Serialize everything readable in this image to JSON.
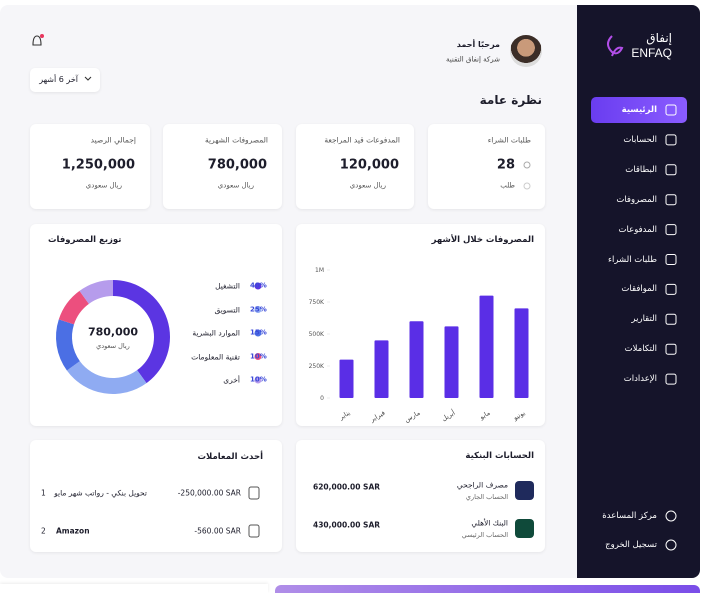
{
  "header": {
    "greeting": "مرحبًا أحمد",
    "company": "شركة إنفاق التقنية",
    "period": "آخر 6 أشهر",
    "title": "نظرة عامة"
  },
  "logo": {
    "arabic": "إنفاق",
    "latin": "ENFAQ"
  },
  "sidebar": {
    "items": [
      "الرئيسية",
      "الحسابات",
      "البطاقات",
      "المصروفات",
      "المدفوعات",
      "طلبات الشراء",
      "الموافقات",
      "التقارير",
      "التكاملات",
      "الإعدادات"
    ],
    "footer": [
      "مركز المساعدة",
      "تسجيل الخروج"
    ]
  },
  "stats": [
    {
      "label": "طلبات الشراء",
      "value": 28,
      "unit": "طلب"
    },
    {
      "label": "المدفوعات قيد المراجعة",
      "value": "120,000",
      "unit": "ريال سعودي"
    },
    {
      "label": "المصروفات الشهرية",
      "value": "780,000",
      "unit": "ريال سعودي"
    },
    {
      "label": "إجمالي الرصيد",
      "value": "1,250,000",
      "unit": "ريال سعودي"
    }
  ],
  "chart_data": [
    {
      "type": "bar",
      "title": "المصروفات خلال الأشهر",
      "categories": [
        "يناير",
        "فبراير",
        "مارس",
        "أبريل",
        "مايو",
        "يونيو"
      ],
      "values": [
        300000,
        450000,
        600000,
        560000,
        800000,
        700000
      ],
      "color": "#5a2ee6",
      "ylim": [
        0,
        1000000
      ],
      "yticks": [
        0,
        {
          "value": 250000,
          "label": "250K"
        },
        {
          "value": 500000,
          "label": "500K"
        },
        {
          "value": 750000,
          "label": "750K"
        },
        {
          "value": 1000000,
          "label": "1M"
        }
      ]
    },
    {
      "type": "pie",
      "title": "توزيع المصروفات",
      "center_value": "780,000",
      "center_label": "ريال سعودي",
      "categories": [
        "التشغيل",
        "التسويق",
        "الموارد البشرية",
        "تقنية المعلومات",
        "أخرى"
      ],
      "values": [
        40,
        25,
        15,
        10,
        10
      ],
      "value_labels": [
        "40%",
        "25%",
        "15%",
        "10%",
        "10%"
      ],
      "colors": [
        "#5b35e2",
        "#8fabf2",
        "#4b6fe4",
        "#ec4f7e",
        "#b69cec"
      ]
    }
  ],
  "transactions": {
    "title": "أحدث المعاملات",
    "rows": [
      {
        "index": 1,
        "description": "تحويل بنكي - رواتب شهر مايو",
        "amount": "-250,000.00 SAR"
      },
      {
        "index": 2,
        "description": "Amazon",
        "amount": "-560.00 SAR"
      }
    ]
  },
  "bank_accounts": {
    "title": "الحسابات البنكية",
    "rows": [
      {
        "bank": "مصرف الراجحي",
        "account": "الحساب الجاري",
        "balance": "620,000.00 SAR"
      },
      {
        "bank": "البنك الأهلي",
        "account": "الحساب الرئيسي",
        "balance": "430,000.00 SAR"
      }
    ]
  }
}
